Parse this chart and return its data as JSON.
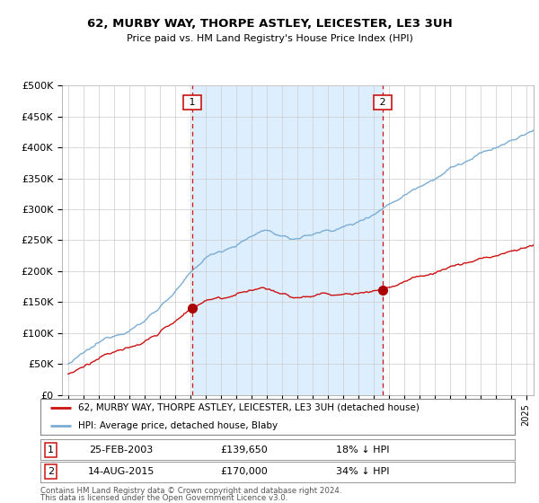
{
  "title": "62, MURBY WAY, THORPE ASTLEY, LEICESTER, LE3 3UH",
  "subtitle": "Price paid vs. HM Land Registry's House Price Index (HPI)",
  "ylim": [
    0,
    500000
  ],
  "yticks": [
    0,
    50000,
    100000,
    150000,
    200000,
    250000,
    300000,
    350000,
    400000,
    450000,
    500000
  ],
  "ytick_labels": [
    "£0",
    "£50K",
    "£100K",
    "£150K",
    "£200K",
    "£250K",
    "£300K",
    "£350K",
    "£400K",
    "£450K",
    "£500K"
  ],
  "hpi_color": "#7aadd4",
  "price_color": "#cc1111",
  "marker_color": "#aa0000",
  "vline_color": "#cc1111",
  "shade_color": "#ddeeff",
  "transaction1_date_num": 2003.14,
  "transaction1_price": 139650,
  "transaction1_date_str": "25-FEB-2003",
  "transaction1_pct": "18% ↓ HPI",
  "transaction2_date_num": 2015.62,
  "transaction2_price": 170000,
  "transaction2_date_str": "14-AUG-2015",
  "transaction2_pct": "34% ↓ HPI",
  "legend_line1": "62, MURBY WAY, THORPE ASTLEY, LEICESTER, LE3 3UH (detached house)",
  "legend_line2": "HPI: Average price, detached house, Blaby",
  "footer1": "Contains HM Land Registry data © Crown copyright and database right 2024.",
  "footer2": "This data is licensed under the Open Government Licence v3.0.",
  "background_color": "#ffffff",
  "grid_color": "#cccccc",
  "xlim_left": 1994.6,
  "xlim_right": 2025.5
}
